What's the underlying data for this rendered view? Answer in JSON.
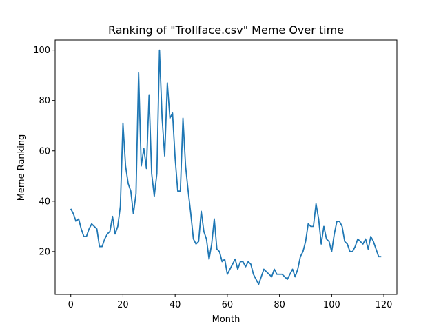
{
  "chart_data": {
    "type": "line",
    "title": "Ranking of \"Trollface.csv\" Meme Over time",
    "xlabel": "Month",
    "ylabel": "Meme Ranking",
    "xlim": [
      -6,
      125
    ],
    "ylim": [
      3,
      104
    ],
    "xticks": [
      0,
      20,
      40,
      60,
      80,
      100,
      120
    ],
    "yticks": [
      20,
      40,
      60,
      80,
      100
    ],
    "grid": false,
    "line_color": "#1f77b4",
    "series": [
      {
        "x": [
          0,
          1,
          2,
          3,
          4,
          5,
          6,
          7,
          8,
          9,
          10,
          11,
          12,
          13,
          14,
          15,
          16,
          17,
          18,
          19,
          20,
          21,
          22,
          23,
          24,
          25,
          26,
          27,
          28,
          29,
          30,
          31,
          32,
          33,
          34,
          35,
          36,
          37,
          38,
          39,
          40,
          41,
          42,
          43,
          44,
          45,
          46,
          47,
          48,
          49,
          50,
          51,
          52,
          53,
          54,
          55,
          56,
          57,
          58,
          59,
          60,
          61,
          62,
          63,
          64,
          65,
          66,
          67,
          68,
          69,
          70,
          71,
          72,
          73,
          74,
          75,
          76,
          77,
          78,
          79,
          80,
          81,
          82,
          83,
          84,
          85,
          86,
          87,
          88,
          89,
          90,
          91,
          92,
          93,
          94,
          95,
          96,
          97,
          98,
          99,
          100,
          101,
          102,
          103,
          104,
          105,
          106,
          107,
          108,
          109,
          110,
          111,
          112,
          113,
          114,
          115,
          116,
          117,
          118,
          119
        ],
        "values": [
          37,
          35,
          32,
          33,
          29,
          26,
          26,
          29,
          31,
          30,
          29,
          22,
          22,
          25,
          27,
          28,
          34,
          27,
          30,
          38,
          71,
          54,
          47,
          44,
          35,
          43,
          91,
          54,
          61,
          53,
          82,
          51,
          42,
          51,
          100,
          73,
          58,
          87,
          73,
          75,
          57,
          44,
          44,
          73,
          54,
          44,
          35,
          25,
          23,
          24,
          36,
          28,
          25,
          17,
          23,
          33,
          21,
          20,
          16,
          17,
          11,
          13,
          15,
          17,
          13,
          16,
          16,
          14,
          16,
          15,
          11,
          9,
          7,
          10,
          13,
          12,
          11,
          10,
          13,
          11,
          11,
          11,
          10,
          9,
          11,
          13,
          10,
          13,
          18,
          20,
          24,
          31,
          30,
          30,
          39,
          33,
          23,
          30,
          25,
          24,
          20,
          27,
          32,
          32,
          30,
          24,
          23,
          20,
          20,
          22,
          25,
          24,
          23,
          25,
          21,
          26,
          24,
          21,
          18,
          18
        ]
      }
    ]
  }
}
